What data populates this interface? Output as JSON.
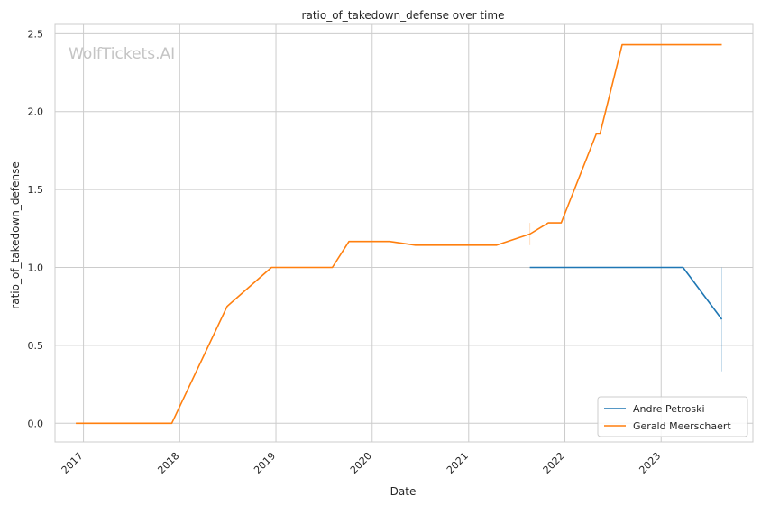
{
  "watermark": "WolfTickets.AI",
  "chart_data": {
    "type": "line",
    "title": "ratio_of_takedown_defense over time",
    "xlabel": "Date",
    "ylabel": "ratio_of_takedown_defense",
    "x_ticks": [
      "2017",
      "2018",
      "2019",
      "2020",
      "2021",
      "2022",
      "2023"
    ],
    "y_ticks": [
      "0.0",
      "0.5",
      "1.0",
      "1.5",
      "2.0",
      "2.5"
    ],
    "xlim": [
      "2016-09-15",
      "2023-12-15"
    ],
    "ylim": [
      -0.12,
      2.56
    ],
    "grid": true,
    "legend_position": "lower-right",
    "series": [
      {
        "name": "Andre Petroski",
        "color": "#1f77b4",
        "x": [
          "2021-08-21",
          "2023-03-25",
          "2023-08-19"
        ],
        "y": [
          1.0,
          1.0,
          0.667
        ]
      },
      {
        "name": "Gerald Meerschaert",
        "color": "#ff7f0e",
        "x": [
          "2016-12-03",
          "2017-12-02",
          "2018-06-30",
          "2018-12-15",
          "2019-08-03",
          "2019-10-05",
          "2020-03-07",
          "2020-06-13",
          "2021-04-17",
          "2021-08-21",
          "2021-10-30",
          "2021-12-18",
          "2022-04-30",
          "2022-05-14",
          "2022-08-06",
          "2023-08-19"
        ],
        "y": [
          0.0,
          0.0,
          0.75,
          1.0,
          1.0,
          1.167,
          1.167,
          1.143,
          1.143,
          1.214,
          1.286,
          1.286,
          1.857,
          1.857,
          2.429,
          2.429
        ]
      }
    ],
    "confidence_marks": [
      {
        "series": "Andre Petroski",
        "x": "2023-08-19",
        "y_low": 0.333,
        "y_high": 1.0
      },
      {
        "series": "Gerald Meerschaert",
        "x": "2021-08-21",
        "y_low": 1.143,
        "y_high": 1.286
      }
    ]
  }
}
